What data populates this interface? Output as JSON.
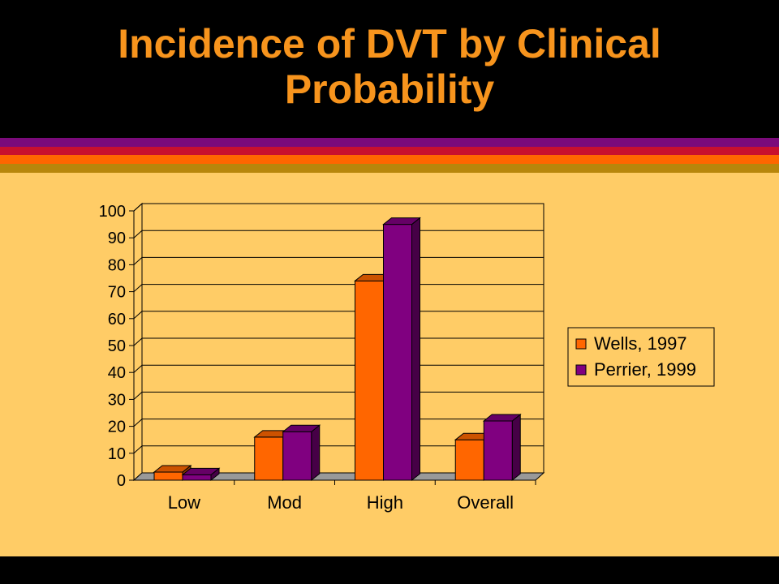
{
  "slide": {
    "title_line1": "Incidence of DVT by Clinical",
    "title_line2": "Probability",
    "colors": {
      "title": "#F7941D",
      "background": "#FFCC66",
      "header": "#000000",
      "stripes": [
        "#7B0A7A",
        "#C8102E",
        "#FF6600",
        "#B8860B"
      ]
    }
  },
  "chart_data": {
    "type": "bar",
    "title": "",
    "xlabel": "",
    "ylabel": "",
    "categories": [
      "Low",
      "Mod",
      "High",
      "Overall"
    ],
    "series": [
      {
        "name": "Wells, 1997",
        "color": "#FF6600",
        "values": [
          3,
          16,
          74,
          15
        ]
      },
      {
        "name": "Perrier, 1999",
        "color": "#800080",
        "values": [
          2,
          18,
          95,
          22
        ]
      }
    ],
    "ylim": [
      0,
      100
    ],
    "yticks": [
      "0",
      "10",
      "20",
      "30",
      "40",
      "50",
      "60",
      "70",
      "80",
      "90",
      "100"
    ],
    "grid": true,
    "legend_position": "right",
    "style": "3d"
  }
}
